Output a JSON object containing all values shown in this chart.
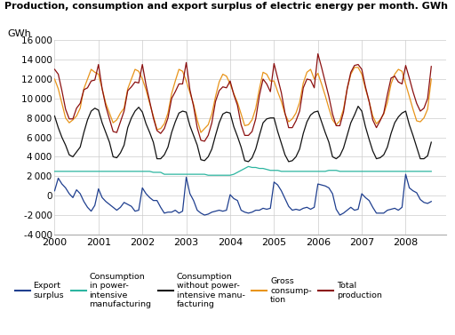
{
  "title": "Production, consumption and export surplus of electric energy per month. GWh",
  "ylabel": "GWh",
  "ylim": [
    -4000,
    16000
  ],
  "yticks": [
    -4000,
    -2000,
    0,
    2000,
    4000,
    6000,
    8000,
    10000,
    12000,
    14000,
    16000
  ],
  "xlim": [
    0,
    107
  ],
  "xtick_positions": [
    0,
    12,
    24,
    36,
    48,
    60,
    72,
    84,
    96
  ],
  "xtick_labels": [
    "2000",
    "2001",
    "2002",
    "2003",
    "2004",
    "2005",
    "2006",
    "2007",
    "2008"
  ],
  "background_color": "#ffffff",
  "grid_color": "#cccccc",
  "series_order": [
    "export_surplus",
    "consumption_power_intensive",
    "consumption_without_power_intensive",
    "gross_consumption",
    "total_production"
  ],
  "series": {
    "export_surplus": {
      "color": "#1f3f8f",
      "label": "Export\nsurplus",
      "values": [
        500,
        1800,
        1200,
        800,
        200,
        -200,
        600,
        200,
        -600,
        -1200,
        -1600,
        -1000,
        700,
        -200,
        -600,
        -900,
        -1200,
        -1500,
        -1200,
        -700,
        -900,
        -1100,
        -1600,
        -1500,
        800,
        200,
        -200,
        -500,
        -500,
        -1200,
        -1800,
        -1700,
        -1700,
        -1500,
        -1800,
        -1600,
        1900,
        200,
        -500,
        -1500,
        -1800,
        -2000,
        -1900,
        -1700,
        -1600,
        -1500,
        -1600,
        -1500,
        100,
        -300,
        -500,
        -1500,
        -1700,
        -1800,
        -1700,
        -1500,
        -1500,
        -1300,
        -1400,
        -1300,
        1400,
        1100,
        500,
        -300,
        -1100,
        -1500,
        -1400,
        -1500,
        -1300,
        -1200,
        -1400,
        -1200,
        1200,
        1100,
        1000,
        800,
        200,
        -1400,
        -2000,
        -1800,
        -1500,
        -1200,
        -1500,
        -1400,
        200,
        -200,
        -500,
        -1200,
        -1800,
        -1800,
        -1800,
        -1500,
        -1400,
        -1300,
        -1500,
        -1200,
        2200,
        800,
        500,
        300,
        -400,
        -700,
        -800,
        -600
      ]
    },
    "consumption_power_intensive": {
      "color": "#2cb5a0",
      "label": "Consumption\nin power-\nintensive\nmanufacturing",
      "values": [
        2500,
        2500,
        2500,
        2500,
        2500,
        2500,
        2500,
        2500,
        2500,
        2500,
        2500,
        2500,
        2500,
        2500,
        2500,
        2500,
        2500,
        2500,
        2500,
        2500,
        2500,
        2500,
        2500,
        2500,
        2500,
        2500,
        2500,
        2400,
        2400,
        2400,
        2200,
        2200,
        2200,
        2200,
        2200,
        2200,
        2200,
        2200,
        2200,
        2200,
        2200,
        2200,
        2100,
        2100,
        2100,
        2100,
        2100,
        2100,
        2100,
        2200,
        2400,
        2600,
        2800,
        3000,
        2900,
        2900,
        2800,
        2800,
        2700,
        2600,
        2600,
        2600,
        2500,
        2500,
        2500,
        2500,
        2500,
        2500,
        2500,
        2500,
        2500,
        2500,
        2500,
        2500,
        2500,
        2600,
        2600,
        2600,
        2500,
        2500,
        2500,
        2500,
        2500,
        2500,
        2500,
        2500,
        2500,
        2500,
        2500,
        2500,
        2500,
        2500,
        2500,
        2500,
        2500,
        2500,
        2500,
        2500,
        2500,
        2500,
        2500,
        2500,
        2500,
        2500
      ]
    },
    "consumption_without_power_intensive": {
      "color": "#111111",
      "label": "Consumption\nwithout power-\nintensive manu-\nfacturing",
      "values": [
        8200,
        7000,
        6000,
        5200,
        4200,
        4000,
        4500,
        5000,
        6500,
        7800,
        8700,
        9000,
        8800,
        7500,
        6500,
        5500,
        4000,
        3900,
        4400,
        5200,
        7000,
        8000,
        8700,
        9100,
        8600,
        7400,
        6500,
        5500,
        3800,
        3800,
        4200,
        5000,
        6500,
        7600,
        8500,
        8700,
        8600,
        7200,
        6200,
        5200,
        3700,
        3600,
        4000,
        4800,
        6200,
        7500,
        8400,
        8600,
        8500,
        7100,
        6100,
        5000,
        3600,
        3500,
        3900,
        4800,
        6200,
        7500,
        7900,
        8000,
        8000,
        6600,
        5400,
        4200,
        3500,
        3600,
        4000,
        4800,
        6400,
        7600,
        8300,
        8600,
        8700,
        7600,
        6500,
        5500,
        4000,
        3800,
        4100,
        4900,
        6200,
        7500,
        8300,
        9200,
        8700,
        7100,
        5800,
        4600,
        3800,
        3900,
        4200,
        5000,
        6400,
        7500,
        8100,
        8500,
        8700,
        7300,
        6200,
        5000,
        3800,
        3800,
        4100,
        5500
      ]
    },
    "gross_consumption": {
      "color": "#e8941a",
      "label": "Gross\nconsump-\ntion",
      "values": [
        12000,
        11000,
        9500,
        8000,
        7500,
        7800,
        8200,
        9000,
        11000,
        12000,
        13000,
        12700,
        12500,
        11000,
        9500,
        8500,
        7500,
        7800,
        8500,
        9000,
        11000,
        12000,
        13000,
        12800,
        12000,
        10900,
        9500,
        8200,
        6800,
        6900,
        7400,
        8500,
        10500,
        11800,
        13000,
        12800,
        11800,
        10600,
        9400,
        7800,
        6500,
        6900,
        7300,
        8400,
        10200,
        11700,
        12500,
        12300,
        11500,
        10500,
        9600,
        8400,
        7200,
        7300,
        7800,
        9000,
        11000,
        12700,
        12500,
        11800,
        11800,
        10700,
        9700,
        8400,
        7600,
        7900,
        8500,
        9600,
        11600,
        12700,
        13000,
        12000,
        12600,
        11500,
        10300,
        9000,
        7800,
        7300,
        7700,
        8900,
        11000,
        12500,
        13200,
        13200,
        12500,
        11000,
        9700,
        8200,
        7400,
        7800,
        8400,
        9600,
        11500,
        12500,
        13000,
        12800,
        11500,
        10200,
        8900,
        7700,
        7600,
        8000,
        8900,
        12000
      ]
    },
    "total_production": {
      "color": "#8b1010",
      "label": "Total\nproduction",
      "values": [
        13000,
        12500,
        10800,
        8900,
        7900,
        7900,
        9000,
        9500,
        10900,
        11100,
        11800,
        11900,
        13500,
        11000,
        9200,
        7900,
        6600,
        6500,
        7600,
        8700,
        10800,
        11200,
        11700,
        11600,
        13500,
        11400,
        9700,
        8000,
        6700,
        6400,
        6900,
        8000,
        10000,
        10700,
        11500,
        11500,
        13700,
        10900,
        9200,
        7000,
        5700,
        5600,
        6200,
        7500,
        9700,
        10800,
        11200,
        11100,
        11800,
        10400,
        9300,
        7300,
        6200,
        6200,
        6600,
        7900,
        10300,
        12000,
        11500,
        10700,
        13600,
        12100,
        10600,
        8500,
        7000,
        7000,
        7700,
        8700,
        11100,
        12000,
        11900,
        11100,
        14600,
        13200,
        11700,
        10200,
        8400,
        7200,
        7200,
        8600,
        11000,
        12700,
        13400,
        13500,
        13000,
        11200,
        9700,
        7800,
        7000,
        7700,
        8500,
        10400,
        12100,
        12300,
        11700,
        11500,
        13400,
        12100,
        10700,
        9500,
        8700,
        9000,
        10000,
        13300
      ]
    }
  },
  "legend": [
    {
      "key": "export_surplus",
      "label": "Export\nsurplus"
    },
    {
      "key": "consumption_power_intensive",
      "label": "Consumption\nin power-\nintensive\nmanufacturing"
    },
    {
      "key": "consumption_without_power_intensive",
      "label": "Consumption\nwithout power-\nintensive manu-\nfacturing"
    },
    {
      "key": "gross_consumption",
      "label": "Gross\nconsump-\ntion"
    },
    {
      "key": "total_production",
      "label": "Total\nproduction"
    }
  ]
}
